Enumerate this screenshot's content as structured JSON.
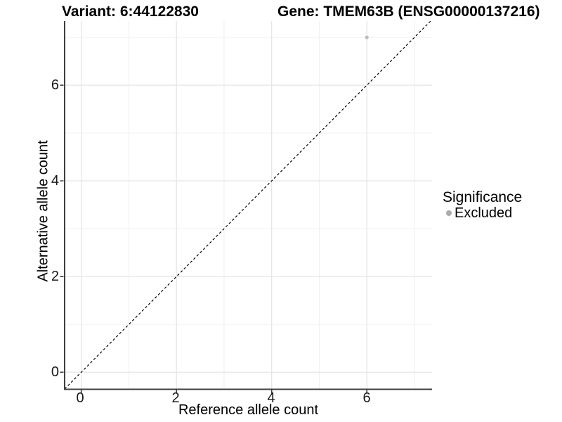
{
  "chart_data": {
    "type": "scatter",
    "titles": {
      "left": "Variant: 6:44122830",
      "right": "Gene: TMEM63B (ENSG00000137216)"
    },
    "xlabel": "Reference allele count",
    "ylabel": "Alternative allele count",
    "xlim": [
      -0.35,
      7.37
    ],
    "ylim": [
      -0.35,
      7.34
    ],
    "x_major_ticks": [
      0,
      2,
      4,
      6
    ],
    "x_tick_labels": [
      "0",
      "2",
      "4",
      "6"
    ],
    "y_major_ticks": [
      0,
      2,
      4,
      6
    ],
    "y_tick_labels": [
      "0",
      "2",
      "4",
      "6"
    ],
    "x_minor_gridlines": [
      1,
      3,
      5,
      7
    ],
    "y_minor_gridlines": [
      1,
      3,
      5,
      7
    ],
    "grid": true,
    "legend_position": "right",
    "series": [
      {
        "name": "Excluded",
        "marker": "circle",
        "color": "#bdbdbd",
        "points": [
          {
            "x": 6,
            "y": 7
          }
        ]
      }
    ],
    "reference_line": {
      "kind": "identity y = x",
      "style": "dashed",
      "color": "#000000",
      "v_start": -0.35,
      "v_end": 7.34
    },
    "legend": {
      "title": "Significance",
      "entries": [
        {
          "label": "Excluded",
          "color": "#ababab",
          "marker": "circle"
        }
      ]
    }
  },
  "colors": {
    "background": "#ffffff",
    "grid_major": "#e4e4e4",
    "grid_minor": "#f0f0f0",
    "axis_line": "#3f3f3f",
    "tick_mark": "#404040",
    "tick_label": "#1a1a1a",
    "text": "#000000"
  }
}
